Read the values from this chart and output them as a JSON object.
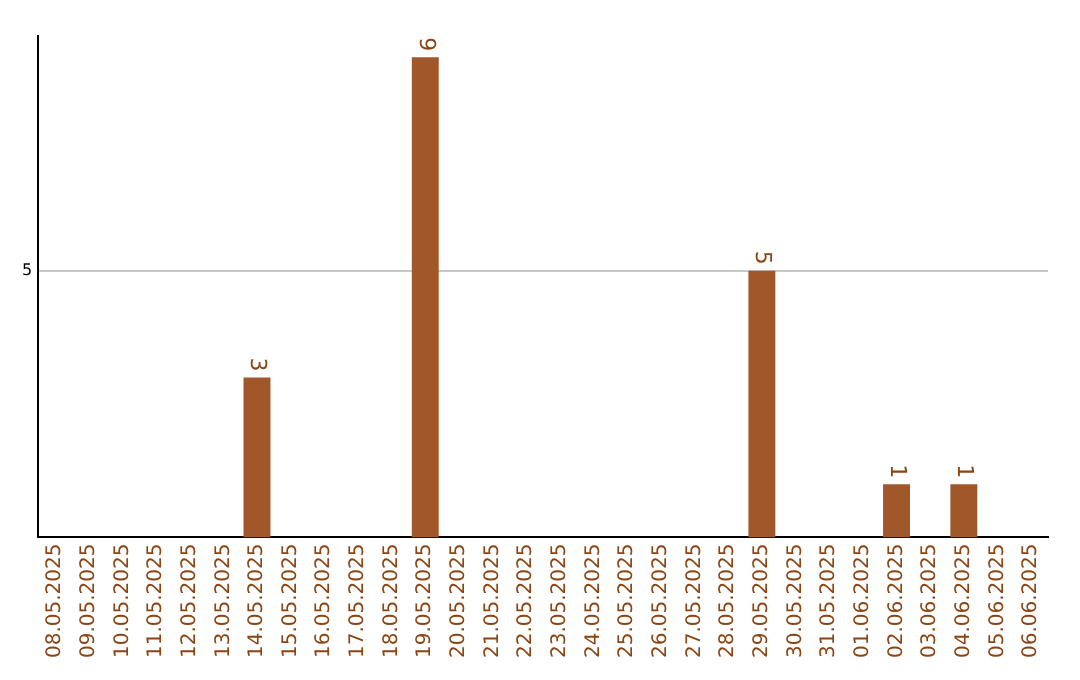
{
  "chart_data": {
    "type": "bar",
    "categories": [
      "08.05.2025",
      "09.05.2025",
      "10.05.2025",
      "11.05.2025",
      "12.05.2025",
      "13.05.2025",
      "14.05.2025",
      "15.05.2025",
      "16.05.2025",
      "17.05.2025",
      "18.05.2025",
      "19.05.2025",
      "20.05.2025",
      "21.05.2025",
      "22.05.2025",
      "23.05.2025",
      "24.05.2025",
      "25.05.2025",
      "26.05.2025",
      "27.05.2025",
      "28.05.2025",
      "29.05.2025",
      "30.05.2025",
      "31.05.2025",
      "01.06.2025",
      "02.06.2025",
      "03.06.2025",
      "04.06.2025",
      "05.06.2025",
      "06.06.2025"
    ],
    "values": [
      0,
      0,
      0,
      0,
      0,
      0,
      3,
      0,
      0,
      0,
      0,
      9,
      0,
      0,
      0,
      0,
      0,
      0,
      0,
      0,
      0,
      5,
      0,
      0,
      0,
      1,
      0,
      1,
      0,
      0
    ],
    "value_labels": [
      null,
      null,
      null,
      null,
      null,
      null,
      "3",
      null,
      null,
      null,
      null,
      "9",
      null,
      null,
      null,
      null,
      null,
      null,
      null,
      null,
      null,
      "5",
      null,
      null,
      null,
      "1",
      null,
      "1",
      null,
      null
    ],
    "color": "#a0582a",
    "ylim": [
      0,
      9.4
    ],
    "yticks": [
      5
    ],
    "grid": "y",
    "legend": false
  }
}
